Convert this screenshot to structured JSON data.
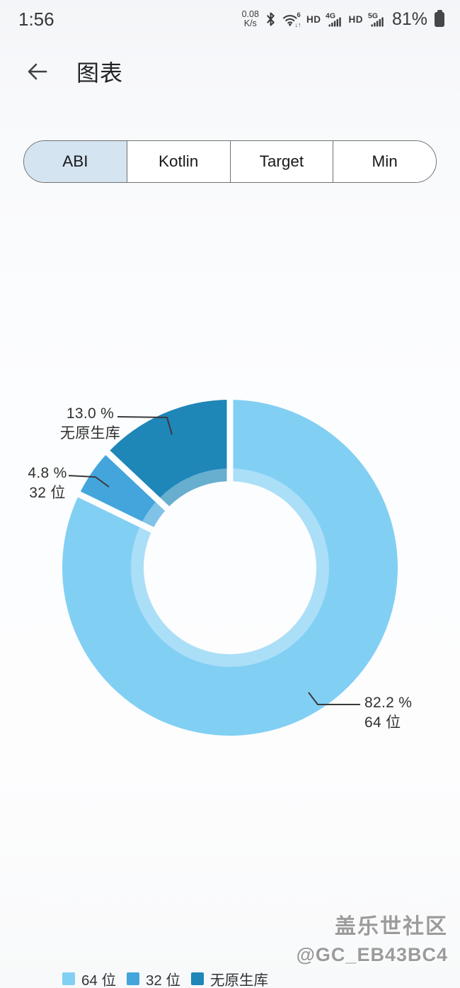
{
  "status_bar": {
    "time": "1:56",
    "net_speed_value": "0.08",
    "net_speed_unit": "K/s",
    "hd_voice_1": "HD",
    "hd_voice_2": "HD",
    "sim1_network": "4G",
    "sim2_network": "5G",
    "wifi_generation": "6",
    "battery_percent": "81%"
  },
  "header": {
    "title": "图表"
  },
  "tabs": [
    {
      "label": "ABI",
      "selected": true
    },
    {
      "label": "Kotlin",
      "selected": false
    },
    {
      "label": "Target",
      "selected": false
    },
    {
      "label": "Min",
      "selected": false
    }
  ],
  "chart_data": {
    "type": "pie",
    "style": "donut",
    "title": "",
    "legend_position": "bottom-left",
    "start_angle_deg": -90,
    "direction": "clockwise",
    "center": [
      325,
      801
    ],
    "outer_radius": 237,
    "inner_radius": 122,
    "gap_color": "#fcfdfe",
    "series": [
      {
        "label": "64 位",
        "percent": 82.2,
        "display": "82.2 %",
        "color": "#82CFF4"
      },
      {
        "label": "32 位",
        "percent": 4.8,
        "display": "4.8 %",
        "color": "#43A5DC"
      },
      {
        "label": "无原生库",
        "percent": 13.0,
        "display": "13.0 %",
        "color": "#1F86B8"
      }
    ]
  },
  "watermark": {
    "line1": "盖乐世社区",
    "line2": "@GC_EB43BC4"
  }
}
